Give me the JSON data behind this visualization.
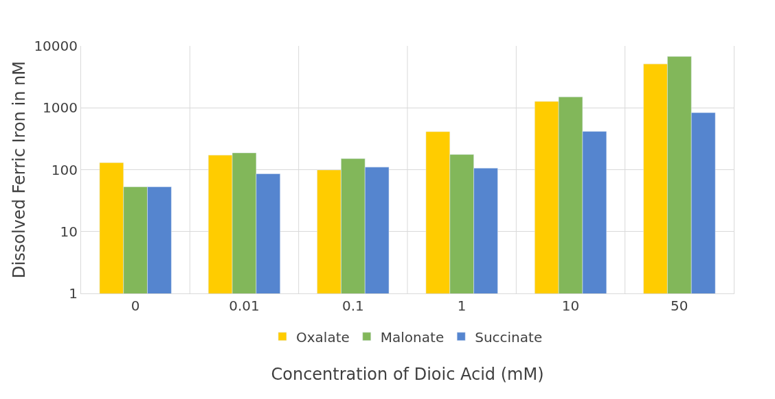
{
  "chart_data": {
    "type": "bar",
    "xlabel": "Concentration of Dioic Acid (mM)",
    "ylabel": "Dissolved Ferric Iron in nM",
    "categories": [
      "0",
      "0.01",
      "0.1",
      "1",
      "10",
      "50"
    ],
    "series": [
      {
        "name": "Oxalate",
        "color": "#ffcc00",
        "values": [
          130,
          172,
          99,
          412,
          1270,
          5130
        ]
      },
      {
        "name": "Malonate",
        "color": "#82b75a",
        "values": [
          53,
          187,
          151,
          176,
          1500,
          6760
        ]
      },
      {
        "name": "Succinate",
        "color": "#5585cf",
        "values": [
          53,
          86,
          110,
          106,
          416,
          835
        ]
      }
    ],
    "log": true,
    "ylim": [
      1,
      10000
    ],
    "yticks": [
      1,
      10,
      100,
      1000,
      10000
    ],
    "grid": true,
    "legend": "bottom"
  }
}
